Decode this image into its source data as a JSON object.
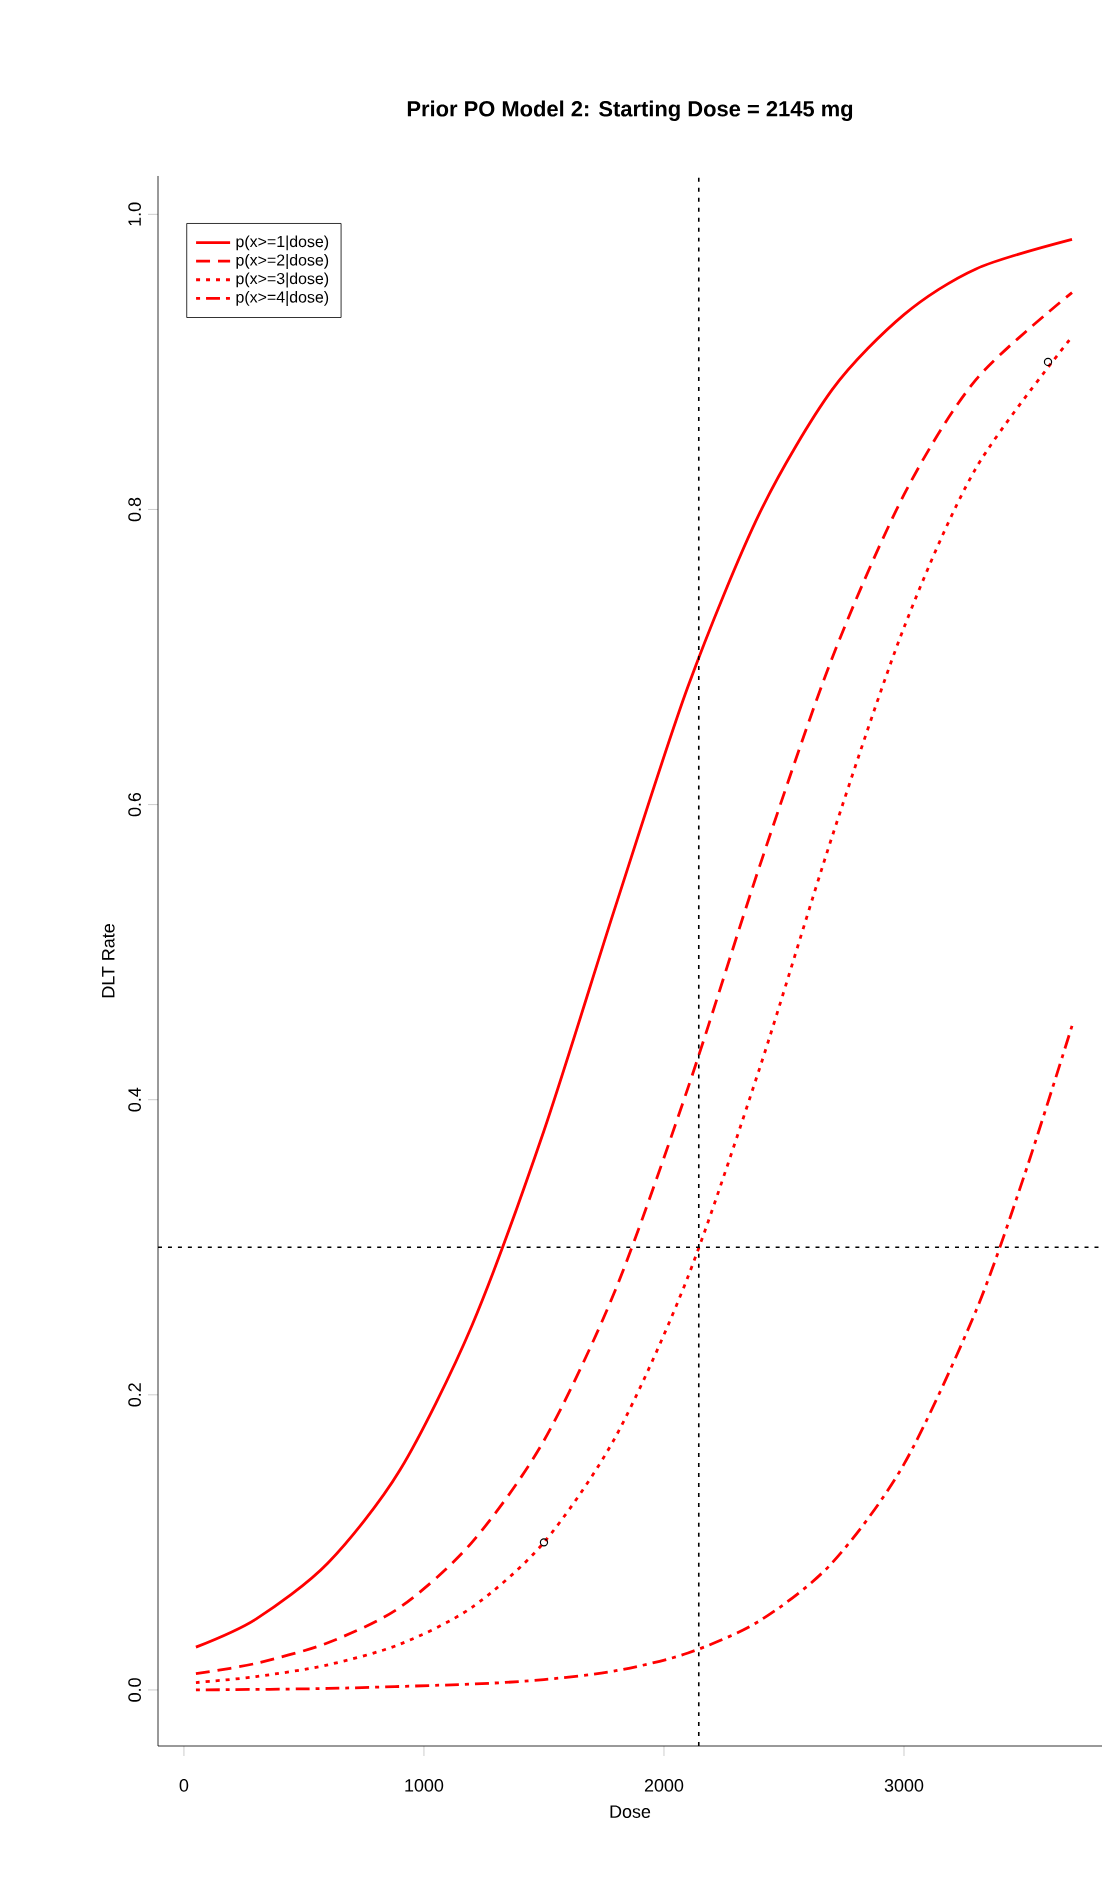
{
  "chart_data": {
    "type": "line",
    "title": "Prior PO Model 2: Starting Dose = 2145 mg",
    "xlabel": "Dose",
    "ylabel": "DLT Rate",
    "xlim": [
      -108,
      3825
    ],
    "ylim": [
      -0.038,
      1.026
    ],
    "xticks": [
      0,
      1000,
      2000,
      3000
    ],
    "yticks": [
      {
        "value": 0,
        "label": "0.0"
      },
      {
        "value": 0.2,
        "label": "0.2"
      },
      {
        "value": 0.4,
        "label": "0.4"
      },
      {
        "value": 0.6,
        "label": "0.6"
      },
      {
        "value": 0.8,
        "label": "0.8"
      },
      {
        "value": 1,
        "label": "1.0"
      }
    ],
    "legend": "top left",
    "marker": "none",
    "ref_lines": [
      {
        "axis": "x",
        "value": 2145,
        "color": "#000000",
        "line_style": "dotted"
      },
      {
        "axis": "y",
        "value": 0.3,
        "color": "#000000",
        "line_style": "dotted"
      }
    ],
    "series": [
      {
        "name": "p(x>=1|dose)",
        "color": "#ff0000",
        "line_style": "solid",
        "x": [
          50,
          300,
          600,
          900,
          1200,
          1500,
          1800,
          2100,
          2400,
          2700,
          3000,
          3300,
          3700
        ],
        "values": [
          0.029,
          0.048,
          0.086,
          0.149,
          0.247,
          0.379,
          0.532,
          0.68,
          0.798,
          0.881,
          0.932,
          0.963,
          0.983
        ]
      },
      {
        "name": "p(x>=2|dose)",
        "color": "#ff0000",
        "line_style": "dashed",
        "x": [
          50,
          300,
          600,
          900,
          1200,
          1500,
          1800,
          2100,
          2400,
          2700,
          3000,
          3300,
          3700
        ],
        "values": [
          0.011,
          0.018,
          0.032,
          0.056,
          0.1,
          0.169,
          0.272,
          0.408,
          0.559,
          0.699,
          0.81,
          0.888,
          0.947
        ]
      },
      {
        "name": "p(x>=3|dose)",
        "color": "#ff0000",
        "line_style": "dotted",
        "x": [
          50,
          300,
          600,
          900,
          1200,
          1500,
          1800,
          2100,
          2400,
          2700,
          3000,
          3300,
          3700
        ],
        "values": [
          0.005,
          0.009,
          0.017,
          0.031,
          0.056,
          0.1,
          0.172,
          0.28,
          0.422,
          0.578,
          0.72,
          0.828,
          0.917
        ]
      },
      {
        "name": "p(x>=4|dose)",
        "color": "#ff0000",
        "line_style": "dashdot",
        "x": [
          50,
          600,
          1200,
          1500,
          1800,
          2100,
          2400,
          2700,
          3000,
          3300,
          3500,
          3700
        ],
        "values": [
          0.0,
          0.001,
          0.004,
          0.007,
          0.013,
          0.025,
          0.047,
          0.086,
          0.153,
          0.257,
          0.348,
          0.45
        ]
      },
      {
        "type": "scatter",
        "color": "#000000",
        "marker": "circle",
        "x": [
          1500,
          3600
        ],
        "values": [
          0.1,
          0.9
        ]
      }
    ]
  }
}
